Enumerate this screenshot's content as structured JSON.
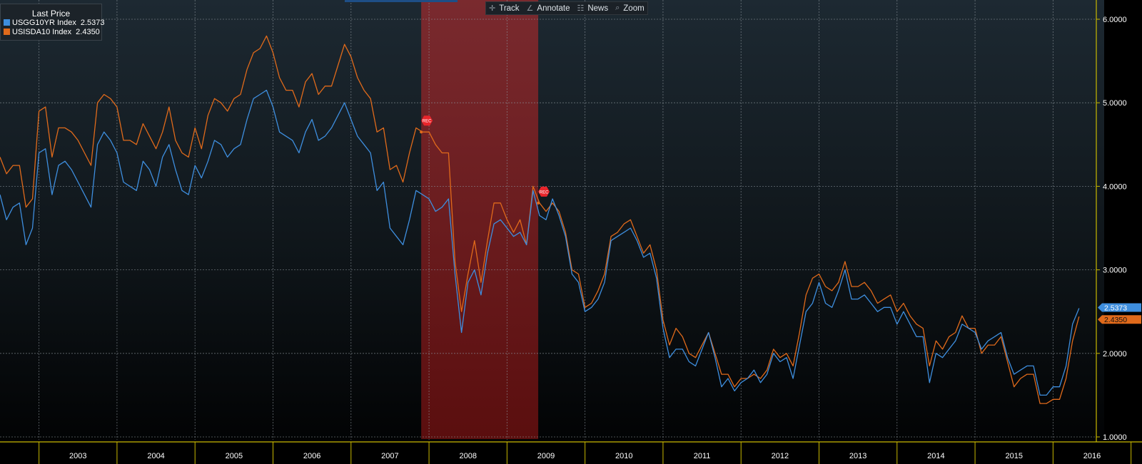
{
  "toolbar": {
    "track": {
      "label": "Track",
      "icon": "crosshair-icon"
    },
    "annotate": {
      "label": "Annotate",
      "icon": "pencil-icon"
    },
    "news": {
      "label": "News",
      "icon": "news-icon"
    },
    "zoom": {
      "label": "Zoom",
      "icon": "magnifier-icon"
    }
  },
  "legend": {
    "title": "Last Price",
    "items": [
      {
        "name": "USGG10YR Index",
        "value": "2.5373",
        "color": "#3e8ede"
      },
      {
        "name": "USISDA10 Index",
        "value": "2.4350",
        "color": "#e06a1b"
      }
    ]
  },
  "chart_data": {
    "type": "line",
    "title": "Last Price",
    "x_start": 2002.5,
    "x_step": 0.083333,
    "x_ticks": [
      "2003",
      "2004",
      "2005",
      "2006",
      "2007",
      "2008",
      "2009",
      "2010",
      "2011",
      "2012",
      "2013",
      "2014",
      "2015",
      "2016"
    ],
    "y_ticks": [
      "1.0000",
      "2.0000",
      "3.0000",
      "4.0000",
      "5.0000",
      "6.0000"
    ],
    "ylim": [
      1.0,
      6.0
    ],
    "recession": {
      "start": 2007.9,
      "end": 2009.4,
      "markers": [
        "REC",
        "REC"
      ]
    },
    "last_labels": [
      "2.5373",
      "2.4350"
    ],
    "series": [
      {
        "name": "USGG10YR Index",
        "color": "#3e8ede",
        "values": [
          3.9,
          3.6,
          3.75,
          3.8,
          3.3,
          3.5,
          4.4,
          4.45,
          3.9,
          4.25,
          4.3,
          4.2,
          4.05,
          3.9,
          3.75,
          4.5,
          4.65,
          4.55,
          4.4,
          4.05,
          4.0,
          3.95,
          4.3,
          4.2,
          4.0,
          4.35,
          4.5,
          4.2,
          3.95,
          3.9,
          4.25,
          4.1,
          4.3,
          4.55,
          4.5,
          4.35,
          4.45,
          4.5,
          4.8,
          5.05,
          5.1,
          5.15,
          4.95,
          4.65,
          4.6,
          4.55,
          4.4,
          4.65,
          4.8,
          4.55,
          4.6,
          4.7,
          4.85,
          5.0,
          4.8,
          4.6,
          4.5,
          4.4,
          3.95,
          4.05,
          3.5,
          3.4,
          3.3,
          3.6,
          3.95,
          3.9,
          3.85,
          3.7,
          3.75,
          3.85,
          2.95,
          2.25,
          2.85,
          3.0,
          2.7,
          3.2,
          3.55,
          3.6,
          3.5,
          3.4,
          3.45,
          3.3,
          3.95,
          3.65,
          3.6,
          3.85,
          3.65,
          3.4,
          2.95,
          2.85,
          2.5,
          2.55,
          2.65,
          2.85,
          3.35,
          3.4,
          3.45,
          3.5,
          3.35,
          3.15,
          3.2,
          2.9,
          2.3,
          1.95,
          2.05,
          2.05,
          1.9,
          1.85,
          2.05,
          2.25,
          1.95,
          1.6,
          1.7,
          1.55,
          1.65,
          1.7,
          1.8,
          1.65,
          1.75,
          2.0,
          1.9,
          1.95,
          1.7,
          2.1,
          2.5,
          2.6,
          2.85,
          2.6,
          2.55,
          2.75,
          3.0,
          2.65,
          2.65,
          2.7,
          2.6,
          2.5,
          2.55,
          2.55,
          2.35,
          2.5,
          2.35,
          2.2,
          2.2,
          1.65,
          2.0,
          1.95,
          2.05,
          2.15,
          2.35,
          2.3,
          2.25,
          2.05,
          2.15,
          2.2,
          2.25,
          1.95,
          1.75,
          1.8,
          1.85,
          1.85,
          1.5,
          1.5,
          1.6,
          1.6,
          1.85,
          2.35,
          2.54
        ]
      },
      {
        "name": "USISDA10 Index",
        "color": "#e06a1b",
        "values": [
          4.35,
          4.15,
          4.25,
          4.25,
          3.75,
          3.85,
          4.9,
          4.95,
          4.35,
          4.7,
          4.7,
          4.65,
          4.55,
          4.4,
          4.25,
          5.0,
          5.1,
          5.05,
          4.95,
          4.55,
          4.55,
          4.5,
          4.75,
          4.6,
          4.45,
          4.65,
          4.95,
          4.55,
          4.4,
          4.35,
          4.7,
          4.45,
          4.85,
          5.05,
          5.0,
          4.9,
          5.05,
          5.1,
          5.4,
          5.6,
          5.65,
          5.8,
          5.6,
          5.3,
          5.15,
          5.15,
          4.95,
          5.25,
          5.35,
          5.1,
          5.2,
          5.2,
          5.45,
          5.7,
          5.55,
          5.3,
          5.15,
          5.05,
          4.65,
          4.7,
          4.2,
          4.25,
          4.05,
          4.4,
          4.7,
          4.65,
          4.65,
          4.5,
          4.4,
          4.4,
          3.1,
          2.5,
          2.95,
          3.35,
          2.85,
          3.35,
          3.8,
          3.8,
          3.6,
          3.45,
          3.6,
          3.3,
          4.0,
          3.8,
          3.7,
          3.8,
          3.7,
          3.45,
          3.0,
          2.95,
          2.55,
          2.6,
          2.75,
          2.95,
          3.4,
          3.45,
          3.55,
          3.6,
          3.4,
          3.2,
          3.3,
          3.0,
          2.4,
          2.1,
          2.3,
          2.2,
          2.0,
          1.95,
          2.1,
          2.25,
          2.0,
          1.75,
          1.75,
          1.6,
          1.7,
          1.7,
          1.75,
          1.7,
          1.8,
          2.05,
          1.95,
          2.0,
          1.85,
          2.25,
          2.7,
          2.9,
          2.95,
          2.8,
          2.75,
          2.85,
          3.1,
          2.8,
          2.8,
          2.85,
          2.75,
          2.6,
          2.65,
          2.7,
          2.5,
          2.6,
          2.45,
          2.35,
          2.3,
          1.85,
          2.15,
          2.05,
          2.2,
          2.25,
          2.45,
          2.3,
          2.3,
          2.0,
          2.1,
          2.1,
          2.2,
          1.9,
          1.6,
          1.7,
          1.75,
          1.75,
          1.4,
          1.4,
          1.45,
          1.45,
          1.7,
          2.15,
          2.44
        ]
      }
    ]
  }
}
